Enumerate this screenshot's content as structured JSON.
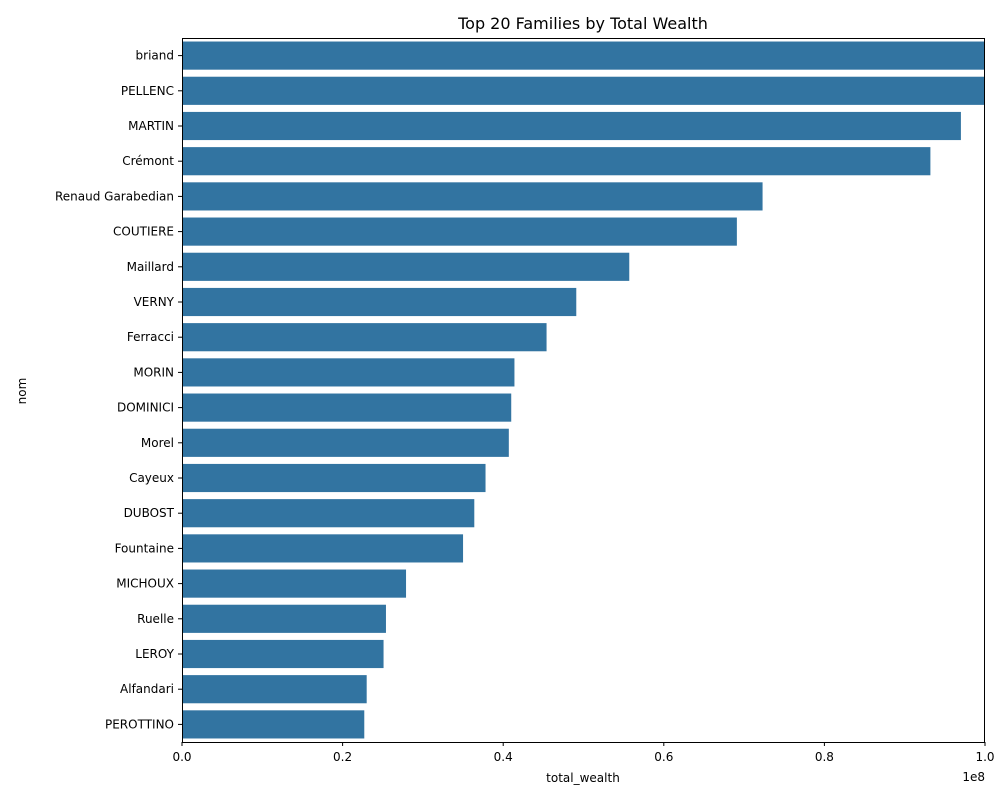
{
  "chart_data": {
    "type": "bar",
    "orientation": "horizontal",
    "title": "Top 20 Families by Total Wealth",
    "xlabel": "total_wealth",
    "ylabel": "nom",
    "x_scale_label": "1e8",
    "xlim": [
      0,
      100000000
    ],
    "x_ticks": [
      0,
      20000000,
      40000000,
      60000000,
      80000000,
      100000000
    ],
    "x_tick_labels": [
      "0.0",
      "0.2",
      "0.4",
      "0.6",
      "0.8",
      "1.0"
    ],
    "grid": false,
    "bar_color": "#3274a1",
    "categories": [
      "briand",
      "PELLENC",
      "MARTIN",
      "Crémont",
      "Renaud Garabedian",
      "COUTIERE",
      "Maillard",
      "VERNY",
      "Ferracci",
      "MORIN",
      "DOMINICI",
      "Morel",
      "Cayeux",
      "DUBOST",
      "Fountaine",
      "MICHOUX",
      "Ruelle",
      "LEROY",
      "Alfandari",
      "PEROTTINO"
    ],
    "values": [
      100000000,
      100000000,
      97000000,
      93200000,
      72300000,
      69100000,
      55700000,
      49100000,
      45400000,
      41400000,
      41000000,
      40700000,
      37800000,
      36400000,
      35000000,
      27900000,
      25400000,
      25100000,
      23000000,
      22700000
    ]
  }
}
